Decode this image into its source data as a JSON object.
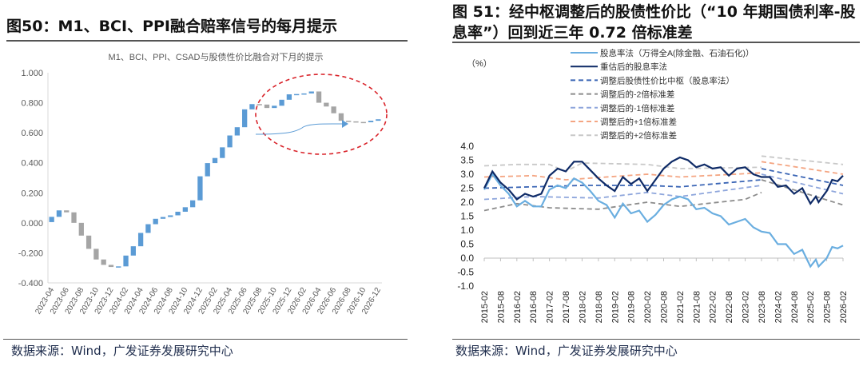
{
  "left": {
    "figure_title": "图50：M1、BCI、PPI融合赔率信号的每月提示",
    "source": "数据来源：Wind，广发证券发展研究中心"
  },
  "right": {
    "figure_title": "图 51：经中枢调整后的股债性价比（“10 年期国债利率-股息率”）回到近三年 0.72 倍标准差",
    "source": "数据来源：Wind，广发证券发展研究中心"
  },
  "chart_data": [
    {
      "type": "bar",
      "subtype": "waterfall",
      "title": "M1、BCI、PPI、CSAD与股债性价比融合对下月的提示",
      "ylim": [
        -0.4,
        1.0
      ],
      "yticks": [
        "1.000",
        "0.800",
        "0.600",
        "0.400",
        "0.200",
        "0.000",
        "-0.200",
        "-0.400"
      ],
      "xtick_labels": [
        "2023-04",
        "2023-06",
        "2023-08",
        "2023-10",
        "2023-12",
        "2024-02",
        "2024-04",
        "2024-06",
        "2024-08",
        "2024-10",
        "2024-12",
        "2025-02",
        "2025-04",
        "2025-06",
        "2025-08",
        "2025-10",
        "2025-12",
        "2026-02",
        "2026-04",
        "2026-06",
        "2026-08",
        "2026-10",
        "2026-12"
      ],
      "start_value": 0.005,
      "categories": [
        "2023-04",
        "2023-05",
        "2023-06",
        "2023-07",
        "2023-08",
        "2023-09",
        "2023-10",
        "2023-11",
        "2023-12",
        "2024-01",
        "2024-02",
        "2024-03",
        "2024-04",
        "2024-05",
        "2024-06",
        "2024-07",
        "2024-08",
        "2024-09",
        "2024-10",
        "2024-11",
        "2024-12",
        "2025-01",
        "2025-02",
        "2025-03",
        "2025-04",
        "2025-05",
        "2025-06",
        "2025-07",
        "2025-08",
        "2025-09",
        "2025-10",
        "2025-11",
        "2025-12",
        "2026-01",
        "2026-02",
        "2026-03",
        "2026-04",
        "2026-05",
        "2026-06",
        "2026-07",
        "2026-08",
        "2026-09",
        "2026-10",
        "2026-11",
        "2026-12"
      ],
      "cumulative_values": [
        0.04,
        0.083,
        0.07,
        0.0,
        -0.085,
        -0.173,
        -0.244,
        -0.28,
        -0.294,
        -0.29,
        -0.218,
        -0.156,
        -0.067,
        -0.009,
        0.027,
        0.039,
        0.05,
        0.074,
        0.104,
        0.15,
        0.31,
        0.398,
        0.432,
        0.503,
        0.582,
        0.637,
        0.756,
        0.791,
        0.788,
        0.765,
        0.78,
        0.82,
        0.856,
        0.858,
        0.862,
        0.875,
        0.8,
        0.775,
        0.73,
        0.68,
        0.676,
        0.672,
        0.67,
        0.68,
        0.69
      ],
      "colors": {
        "increase": "#5b9bd5",
        "decrease": "#a5a5a5",
        "annotation": "#d9232a",
        "arrow": "#5b9bd5"
      },
      "annotation": "dashed red ellipse around 2025-07 to 2026-12 with blue arrow"
    },
    {
      "type": "line",
      "unit_label": "（%）",
      "ylim": [
        -1.0,
        4.0
      ],
      "yticks": [
        "4.0",
        "3.5",
        "3.0",
        "2.5",
        "2.0",
        "1.5",
        "1.0",
        "0.5",
        "0.0",
        "-0.5",
        "-1.0"
      ],
      "xtick_labels": [
        "2015-02",
        "2015-08",
        "2016-02",
        "2016-08",
        "2017-02",
        "2017-08",
        "2018-02",
        "2018-08",
        "2019-02",
        "2019-08",
        "2020-02",
        "2020-08",
        "2021-02",
        "2021-08",
        "2022-02",
        "2022-08",
        "2023-02",
        "2023-08",
        "2024-02",
        "2024-08",
        "2025-02",
        "2025-08",
        "2026-02"
      ],
      "legend_placement": "top",
      "series": [
        {
          "name": "股息率法（万得全A(除金融、石油石化)）",
          "color": "#6aaee0",
          "style": "solid",
          "x": [
            "2015-02",
            "2015-05",
            "2015-08",
            "2015-11",
            "2016-02",
            "2016-05",
            "2016-08",
            "2016-11",
            "2017-02",
            "2017-05",
            "2017-08",
            "2017-11",
            "2018-02",
            "2018-05",
            "2018-08",
            "2018-11",
            "2019-02",
            "2019-05",
            "2019-08",
            "2019-11",
            "2020-02",
            "2020-05",
            "2020-08",
            "2020-11",
            "2021-02",
            "2021-05",
            "2021-08",
            "2021-11",
            "2022-02",
            "2022-05",
            "2022-08",
            "2022-11",
            "2023-02",
            "2023-05",
            "2023-08",
            "2023-11",
            "2024-02",
            "2024-05",
            "2024-08",
            "2024-11",
            "2025-02",
            "2025-04",
            "2025-05",
            "2025-08",
            "2025-10",
            "2025-12",
            "2026-02"
          ],
          "y": [
            2.45,
            3.0,
            2.6,
            2.3,
            1.85,
            2.05,
            1.85,
            1.85,
            2.45,
            2.6,
            2.5,
            2.85,
            2.7,
            2.4,
            2.05,
            1.9,
            1.45,
            1.95,
            1.6,
            1.7,
            1.3,
            1.55,
            1.9,
            2.1,
            2.2,
            2.1,
            1.75,
            1.8,
            1.6,
            1.5,
            1.2,
            1.3,
            1.4,
            1.1,
            0.95,
            0.9,
            0.5,
            0.5,
            0.15,
            0.3,
            -0.3,
            -0.05,
            -0.3,
            0.0,
            0.4,
            0.35,
            0.45
          ]
        },
        {
          "name": "重估后的股息率法",
          "color": "#0e2a66",
          "style": "solid",
          "x": [
            "2015-02",
            "2015-05",
            "2015-08",
            "2015-11",
            "2016-02",
            "2016-05",
            "2016-08",
            "2016-11",
            "2017-02",
            "2017-05",
            "2017-08",
            "2017-11",
            "2018-02",
            "2018-05",
            "2018-08",
            "2018-11",
            "2019-02",
            "2019-05",
            "2019-08",
            "2019-11",
            "2020-02",
            "2020-05",
            "2020-08",
            "2020-11",
            "2021-02",
            "2021-05",
            "2021-08",
            "2021-11",
            "2022-02",
            "2022-05",
            "2022-08",
            "2022-11",
            "2023-02",
            "2023-05",
            "2023-08",
            "2023-11",
            "2024-02",
            "2024-05",
            "2024-08",
            "2024-11",
            "2025-02",
            "2025-04",
            "2025-05",
            "2025-08",
            "2025-10",
            "2025-12",
            "2026-02"
          ],
          "y": [
            2.5,
            3.1,
            2.7,
            2.45,
            2.1,
            2.3,
            2.2,
            2.3,
            2.95,
            3.2,
            3.1,
            3.45,
            3.45,
            3.15,
            2.85,
            2.6,
            2.4,
            2.9,
            2.65,
            2.85,
            2.4,
            2.8,
            3.2,
            3.45,
            3.6,
            3.5,
            3.25,
            3.35,
            3.2,
            3.25,
            2.95,
            3.2,
            3.25,
            3.0,
            2.9,
            2.9,
            2.55,
            2.6,
            2.3,
            2.5,
            1.95,
            2.2,
            2.0,
            2.4,
            2.8,
            2.75,
            2.95
          ]
        },
        {
          "name": "调整后股债性价比中枢（股息率法）",
          "color": "#3a65b5",
          "style": "dashed",
          "segments": [
            {
              "x": [
                "2015-02",
                "2018-02",
                "2020-02",
                "2021-02",
                "2023-08"
              ],
              "y": [
                2.5,
                2.6,
                2.6,
                2.55,
                2.8
              ]
            },
            {
              "x": [
                "2023-08",
                "2026-02"
              ],
              "y": [
                3.2,
                2.6
              ]
            }
          ]
        },
        {
          "name": "调整后的-2倍标准差",
          "color": "#8c8c8c",
          "style": "dashed",
          "segments": [
            {
              "x": [
                "2015-02",
                "2016-02",
                "2017-02",
                "2018-08",
                "2020-02",
                "2021-02",
                "2023-02",
                "2023-08"
              ],
              "y": [
                1.7,
                1.95,
                1.8,
                1.75,
                2.0,
                1.85,
                2.1,
                2.35
              ]
            },
            {
              "x": [
                "2023-08",
                "2026-02"
              ],
              "y": [
                2.8,
                1.9
              ]
            }
          ]
        },
        {
          "name": "调整后的-1倍标准差",
          "color": "#8ea6dc",
          "style": "dashed",
          "segments": [
            {
              "x": [
                "2015-02",
                "2016-08",
                "2018-08",
                "2020-02",
                "2021-02",
                "2023-08"
              ],
              "y": [
                2.1,
                2.2,
                2.15,
                2.35,
                2.2,
                2.6
              ]
            },
            {
              "x": [
                "2023-08",
                "2026-02"
              ],
              "y": [
                3.0,
                2.3
              ]
            }
          ]
        },
        {
          "name": "调整后的+1倍标准差",
          "color": "#f4a582",
          "style": "dashed",
          "segments": [
            {
              "x": [
                "2015-02",
                "2016-08",
                "2017-08",
                "2020-02",
                "2021-02",
                "2023-08"
              ],
              "y": [
                2.9,
                2.95,
                2.8,
                3.0,
                2.9,
                3.05
              ]
            },
            {
              "x": [
                "2023-08",
                "2026-02"
              ],
              "y": [
                3.45,
                3.0
              ]
            }
          ]
        },
        {
          "name": "调整后的+2倍标准差",
          "color": "#c8c8c8",
          "style": "dashed",
          "segments": [
            {
              "x": [
                "2015-02",
                "2016-02",
                "2017-02",
                "2017-08",
                "2018-02",
                "2020-02",
                "2021-02",
                "2023-08"
              ],
              "y": [
                3.3,
                3.35,
                3.35,
                3.1,
                3.4,
                3.35,
                3.2,
                3.25
              ]
            },
            {
              "x": [
                "2023-08",
                "2026-02"
              ],
              "y": [
                3.65,
                3.35
              ]
            }
          ]
        }
      ]
    }
  ]
}
